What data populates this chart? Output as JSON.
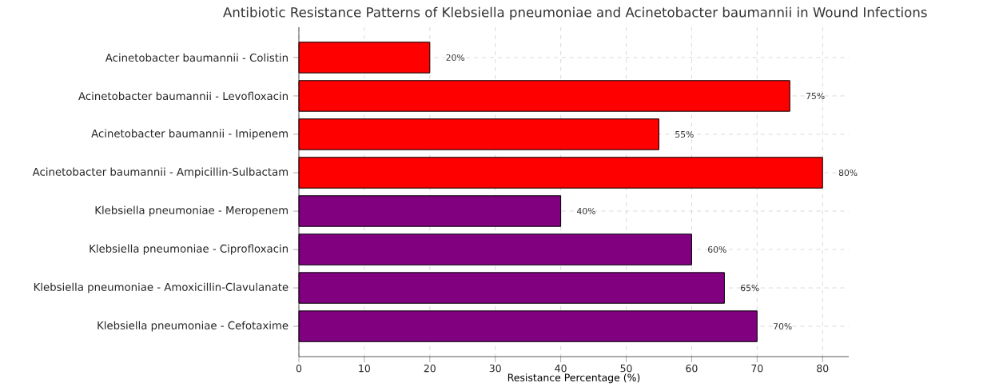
{
  "chart_data": {
    "type": "bar",
    "orientation": "horizontal",
    "title": "Antibiotic Resistance Patterns of Klebsiella pneumoniae and Acinetobacter baumannii in Wound Infections",
    "xlabel": "Resistance Percentage (%)",
    "categories": [
      "Acinetobacter baumannii - Colistin",
      "Acinetobacter baumannii - Levofloxacin",
      "Acinetobacter baumannii - Imipenem",
      "Acinetobacter baumannii - Ampicillin-Sulbactam",
      "Klebsiella pneumoniae - Meropenem",
      "Klebsiella pneumoniae - Ciprofloxacin",
      "Klebsiella pneumoniae - Amoxicillin-Clavulanate",
      "Klebsiella pneumoniae - Cefotaxime"
    ],
    "values": [
      20,
      75,
      55,
      80,
      40,
      60,
      65,
      70
    ],
    "colors": [
      "#ff0000",
      "#ff0000",
      "#ff0000",
      "#ff0000",
      "#800080",
      "#800080",
      "#800080",
      "#800080"
    ],
    "value_labels": [
      "20%",
      "75%",
      "55%",
      "80%",
      "40%",
      "60%",
      "65%",
      "70%"
    ],
    "xlim": [
      0,
      84
    ],
    "xticks": [
      0,
      10,
      20,
      30,
      40,
      50,
      60,
      70,
      80
    ],
    "grid": true
  }
}
